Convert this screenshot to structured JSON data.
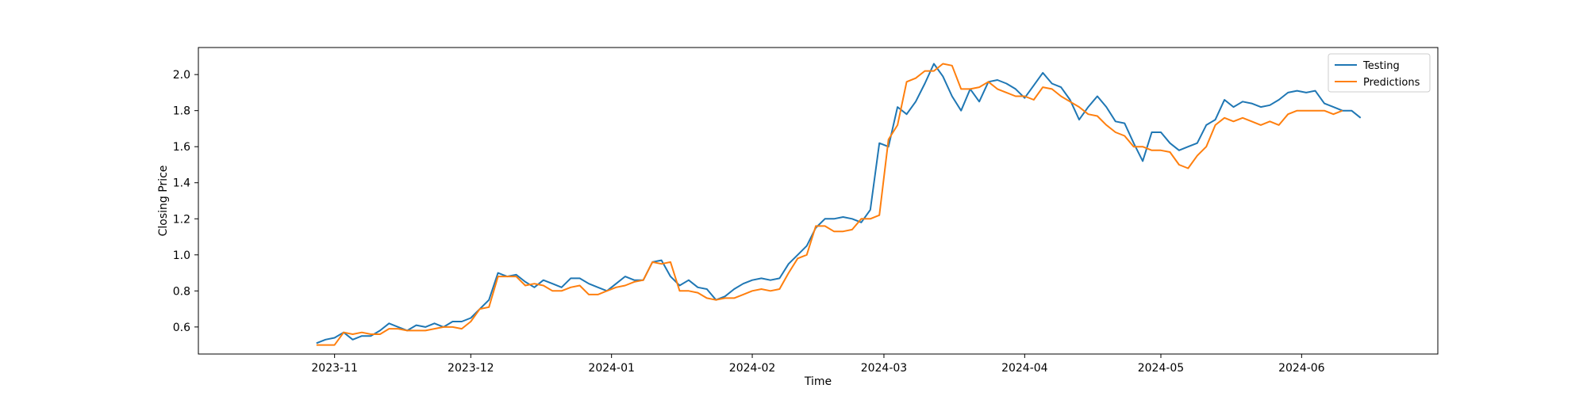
{
  "chart_data": {
    "type": "line",
    "title": "",
    "xlabel": "Time",
    "ylabel": "Closing Price",
    "xlim": [
      "2023-10-02",
      "2024-07-01"
    ],
    "ylim": [
      0.45,
      2.15
    ],
    "x_ticks": [
      {
        "date": "2023-11-01",
        "label": "2023-11"
      },
      {
        "date": "2023-12-01",
        "label": "2023-12"
      },
      {
        "date": "2024-01-01",
        "label": "2024-01"
      },
      {
        "date": "2024-02-01",
        "label": "2024-02"
      },
      {
        "date": "2024-03-01",
        "label": "2024-03"
      },
      {
        "date": "2024-04-01",
        "label": "2024-04"
      },
      {
        "date": "2024-05-01",
        "label": "2024-05"
      },
      {
        "date": "2024-06-01",
        "label": "2024-06"
      }
    ],
    "y_ticks": [
      {
        "value": 0.6,
        "label": "0.6"
      },
      {
        "value": 0.8,
        "label": "0.8"
      },
      {
        "value": 1.0,
        "label": "1.0"
      },
      {
        "value": 1.2,
        "label": "1.2"
      },
      {
        "value": 1.4,
        "label": "1.4"
      },
      {
        "value": 1.6,
        "label": "1.6"
      },
      {
        "value": 1.8,
        "label": "1.8"
      },
      {
        "value": 2.0,
        "label": "2.0"
      }
    ],
    "grid": false,
    "legend": {
      "position": "top-right"
    },
    "series": [
      {
        "name": "Testing",
        "color": "#1f77b4",
        "points": [
          [
            "2023-10-28",
            0.51
          ],
          [
            "2023-10-30",
            0.53
          ],
          [
            "2023-11-01",
            0.54
          ],
          [
            "2023-11-03",
            0.57
          ],
          [
            "2023-11-05",
            0.53
          ],
          [
            "2023-11-07",
            0.55
          ],
          [
            "2023-11-09",
            0.55
          ],
          [
            "2023-11-11",
            0.58
          ],
          [
            "2023-11-13",
            0.62
          ],
          [
            "2023-11-15",
            0.6
          ],
          [
            "2023-11-17",
            0.58
          ],
          [
            "2023-11-19",
            0.61
          ],
          [
            "2023-11-21",
            0.6
          ],
          [
            "2023-11-23",
            0.62
          ],
          [
            "2023-11-25",
            0.6
          ],
          [
            "2023-11-27",
            0.63
          ],
          [
            "2023-11-29",
            0.63
          ],
          [
            "2023-12-01",
            0.65
          ],
          [
            "2023-12-03",
            0.7
          ],
          [
            "2023-12-05",
            0.75
          ],
          [
            "2023-12-07",
            0.9
          ],
          [
            "2023-12-09",
            0.88
          ],
          [
            "2023-12-11",
            0.89
          ],
          [
            "2023-12-13",
            0.85
          ],
          [
            "2023-12-15",
            0.82
          ],
          [
            "2023-12-17",
            0.86
          ],
          [
            "2023-12-19",
            0.84
          ],
          [
            "2023-12-21",
            0.82
          ],
          [
            "2023-12-23",
            0.87
          ],
          [
            "2023-12-25",
            0.87
          ],
          [
            "2023-12-27",
            0.84
          ],
          [
            "2023-12-29",
            0.82
          ],
          [
            "2023-12-31",
            0.8
          ],
          [
            "2024-01-02",
            0.84
          ],
          [
            "2024-01-04",
            0.88
          ],
          [
            "2024-01-06",
            0.86
          ],
          [
            "2024-01-08",
            0.86
          ],
          [
            "2024-01-10",
            0.96
          ],
          [
            "2024-01-12",
            0.97
          ],
          [
            "2024-01-14",
            0.88
          ],
          [
            "2024-01-16",
            0.83
          ],
          [
            "2024-01-18",
            0.86
          ],
          [
            "2024-01-20",
            0.82
          ],
          [
            "2024-01-22",
            0.81
          ],
          [
            "2024-01-24",
            0.75
          ],
          [
            "2024-01-26",
            0.77
          ],
          [
            "2024-01-28",
            0.81
          ],
          [
            "2024-01-30",
            0.84
          ],
          [
            "2024-02-01",
            0.86
          ],
          [
            "2024-02-03",
            0.87
          ],
          [
            "2024-02-05",
            0.86
          ],
          [
            "2024-02-07",
            0.87
          ],
          [
            "2024-02-09",
            0.95
          ],
          [
            "2024-02-11",
            1.0
          ],
          [
            "2024-02-13",
            1.05
          ],
          [
            "2024-02-15",
            1.15
          ],
          [
            "2024-02-17",
            1.2
          ],
          [
            "2024-02-19",
            1.2
          ],
          [
            "2024-02-21",
            1.21
          ],
          [
            "2024-02-23",
            1.2
          ],
          [
            "2024-02-25",
            1.18
          ],
          [
            "2024-02-27",
            1.25
          ],
          [
            "2024-02-29",
            1.62
          ],
          [
            "2024-03-02",
            1.6
          ],
          [
            "2024-03-04",
            1.82
          ],
          [
            "2024-03-06",
            1.78
          ],
          [
            "2024-03-08",
            1.85
          ],
          [
            "2024-03-10",
            1.95
          ],
          [
            "2024-03-12",
            2.06
          ],
          [
            "2024-03-14",
            1.99
          ],
          [
            "2024-03-16",
            1.88
          ],
          [
            "2024-03-18",
            1.8
          ],
          [
            "2024-03-20",
            1.92
          ],
          [
            "2024-03-22",
            1.85
          ],
          [
            "2024-03-24",
            1.96
          ],
          [
            "2024-03-26",
            1.97
          ],
          [
            "2024-03-28",
            1.95
          ],
          [
            "2024-03-30",
            1.92
          ],
          [
            "2024-04-01",
            1.87
          ],
          [
            "2024-04-03",
            1.94
          ],
          [
            "2024-04-05",
            2.01
          ],
          [
            "2024-04-07",
            1.95
          ],
          [
            "2024-04-09",
            1.93
          ],
          [
            "2024-04-11",
            1.86
          ],
          [
            "2024-04-13",
            1.75
          ],
          [
            "2024-04-15",
            1.82
          ],
          [
            "2024-04-17",
            1.88
          ],
          [
            "2024-04-19",
            1.82
          ],
          [
            "2024-04-21",
            1.74
          ],
          [
            "2024-04-23",
            1.73
          ],
          [
            "2024-04-25",
            1.62
          ],
          [
            "2024-04-27",
            1.52
          ],
          [
            "2024-04-29",
            1.68
          ],
          [
            "2024-05-01",
            1.68
          ],
          [
            "2024-05-03",
            1.62
          ],
          [
            "2024-05-05",
            1.58
          ],
          [
            "2024-05-07",
            1.6
          ],
          [
            "2024-05-09",
            1.62
          ],
          [
            "2024-05-11",
            1.72
          ],
          [
            "2024-05-13",
            1.75
          ],
          [
            "2024-05-15",
            1.86
          ],
          [
            "2024-05-17",
            1.82
          ],
          [
            "2024-05-19",
            1.85
          ],
          [
            "2024-05-21",
            1.84
          ],
          [
            "2024-05-23",
            1.82
          ],
          [
            "2024-05-25",
            1.83
          ],
          [
            "2024-05-27",
            1.86
          ],
          [
            "2024-05-29",
            1.9
          ],
          [
            "2024-05-31",
            1.91
          ],
          [
            "2024-06-02",
            1.9
          ],
          [
            "2024-06-04",
            1.91
          ],
          [
            "2024-06-06",
            1.84
          ],
          [
            "2024-06-08",
            1.82
          ],
          [
            "2024-06-10",
            1.8
          ],
          [
            "2024-06-12",
            1.8
          ],
          [
            "2024-06-14",
            1.76
          ]
        ]
      },
      {
        "name": "Predictions",
        "color": "#ff7f0e",
        "points": [
          [
            "2023-10-28",
            0.5
          ],
          [
            "2023-10-30",
            0.5
          ],
          [
            "2023-11-01",
            0.5
          ],
          [
            "2023-11-03",
            0.57
          ],
          [
            "2023-11-05",
            0.56
          ],
          [
            "2023-11-07",
            0.57
          ],
          [
            "2023-11-09",
            0.56
          ],
          [
            "2023-11-11",
            0.56
          ],
          [
            "2023-11-13",
            0.59
          ],
          [
            "2023-11-15",
            0.59
          ],
          [
            "2023-11-17",
            0.58
          ],
          [
            "2023-11-19",
            0.58
          ],
          [
            "2023-11-21",
            0.58
          ],
          [
            "2023-11-23",
            0.59
          ],
          [
            "2023-11-25",
            0.6
          ],
          [
            "2023-11-27",
            0.6
          ],
          [
            "2023-11-29",
            0.59
          ],
          [
            "2023-12-01",
            0.63
          ],
          [
            "2023-12-03",
            0.7
          ],
          [
            "2023-12-05",
            0.71
          ],
          [
            "2023-12-07",
            0.88
          ],
          [
            "2023-12-09",
            0.88
          ],
          [
            "2023-12-11",
            0.88
          ],
          [
            "2023-12-13",
            0.83
          ],
          [
            "2023-12-15",
            0.84
          ],
          [
            "2023-12-17",
            0.83
          ],
          [
            "2023-12-19",
            0.8
          ],
          [
            "2023-12-21",
            0.8
          ],
          [
            "2023-12-23",
            0.82
          ],
          [
            "2023-12-25",
            0.83
          ],
          [
            "2023-12-27",
            0.78
          ],
          [
            "2023-12-29",
            0.78
          ],
          [
            "2023-12-31",
            0.8
          ],
          [
            "2024-01-02",
            0.82
          ],
          [
            "2024-01-04",
            0.83
          ],
          [
            "2024-01-06",
            0.85
          ],
          [
            "2024-01-08",
            0.86
          ],
          [
            "2024-01-10",
            0.96
          ],
          [
            "2024-01-12",
            0.95
          ],
          [
            "2024-01-14",
            0.96
          ],
          [
            "2024-01-16",
            0.8
          ],
          [
            "2024-01-18",
            0.8
          ],
          [
            "2024-01-20",
            0.79
          ],
          [
            "2024-01-22",
            0.76
          ],
          [
            "2024-01-24",
            0.75
          ],
          [
            "2024-01-26",
            0.76
          ],
          [
            "2024-01-28",
            0.76
          ],
          [
            "2024-01-30",
            0.78
          ],
          [
            "2024-02-01",
            0.8
          ],
          [
            "2024-02-03",
            0.81
          ],
          [
            "2024-02-05",
            0.8
          ],
          [
            "2024-02-07",
            0.81
          ],
          [
            "2024-02-09",
            0.9
          ],
          [
            "2024-02-11",
            0.98
          ],
          [
            "2024-02-13",
            1.0
          ],
          [
            "2024-02-15",
            1.16
          ],
          [
            "2024-02-17",
            1.16
          ],
          [
            "2024-02-19",
            1.13
          ],
          [
            "2024-02-21",
            1.13
          ],
          [
            "2024-02-23",
            1.14
          ],
          [
            "2024-02-25",
            1.2
          ],
          [
            "2024-02-27",
            1.2
          ],
          [
            "2024-02-29",
            1.22
          ],
          [
            "2024-03-02",
            1.64
          ],
          [
            "2024-03-04",
            1.72
          ],
          [
            "2024-03-06",
            1.96
          ],
          [
            "2024-03-08",
            1.98
          ],
          [
            "2024-03-10",
            2.02
          ],
          [
            "2024-03-12",
            2.02
          ],
          [
            "2024-03-14",
            2.06
          ],
          [
            "2024-03-16",
            2.05
          ],
          [
            "2024-03-18",
            1.92
          ],
          [
            "2024-03-20",
            1.92
          ],
          [
            "2024-03-22",
            1.93
          ],
          [
            "2024-03-24",
            1.96
          ],
          [
            "2024-03-26",
            1.92
          ],
          [
            "2024-03-28",
            1.9
          ],
          [
            "2024-03-30",
            1.88
          ],
          [
            "2024-04-01",
            1.88
          ],
          [
            "2024-04-03",
            1.86
          ],
          [
            "2024-04-05",
            1.93
          ],
          [
            "2024-04-07",
            1.92
          ],
          [
            "2024-04-09",
            1.88
          ],
          [
            "2024-04-11",
            1.85
          ],
          [
            "2024-04-13",
            1.82
          ],
          [
            "2024-04-15",
            1.78
          ],
          [
            "2024-04-17",
            1.77
          ],
          [
            "2024-04-19",
            1.72
          ],
          [
            "2024-04-21",
            1.68
          ],
          [
            "2024-04-23",
            1.66
          ],
          [
            "2024-04-25",
            1.6
          ],
          [
            "2024-04-27",
            1.6
          ],
          [
            "2024-04-29",
            1.58
          ],
          [
            "2024-05-01",
            1.58
          ],
          [
            "2024-05-03",
            1.57
          ],
          [
            "2024-05-05",
            1.5
          ],
          [
            "2024-05-07",
            1.48
          ],
          [
            "2024-05-09",
            1.55
          ],
          [
            "2024-05-11",
            1.6
          ],
          [
            "2024-05-13",
            1.72
          ],
          [
            "2024-05-15",
            1.76
          ],
          [
            "2024-05-17",
            1.74
          ],
          [
            "2024-05-19",
            1.76
          ],
          [
            "2024-05-21",
            1.74
          ],
          [
            "2024-05-23",
            1.72
          ],
          [
            "2024-05-25",
            1.74
          ],
          [
            "2024-05-27",
            1.72
          ],
          [
            "2024-05-29",
            1.78
          ],
          [
            "2024-05-31",
            1.8
          ],
          [
            "2024-06-02",
            1.8
          ],
          [
            "2024-06-04",
            1.8
          ],
          [
            "2024-06-06",
            1.8
          ],
          [
            "2024-06-08",
            1.78
          ],
          [
            "2024-06-10",
            1.8
          ]
        ]
      }
    ]
  }
}
